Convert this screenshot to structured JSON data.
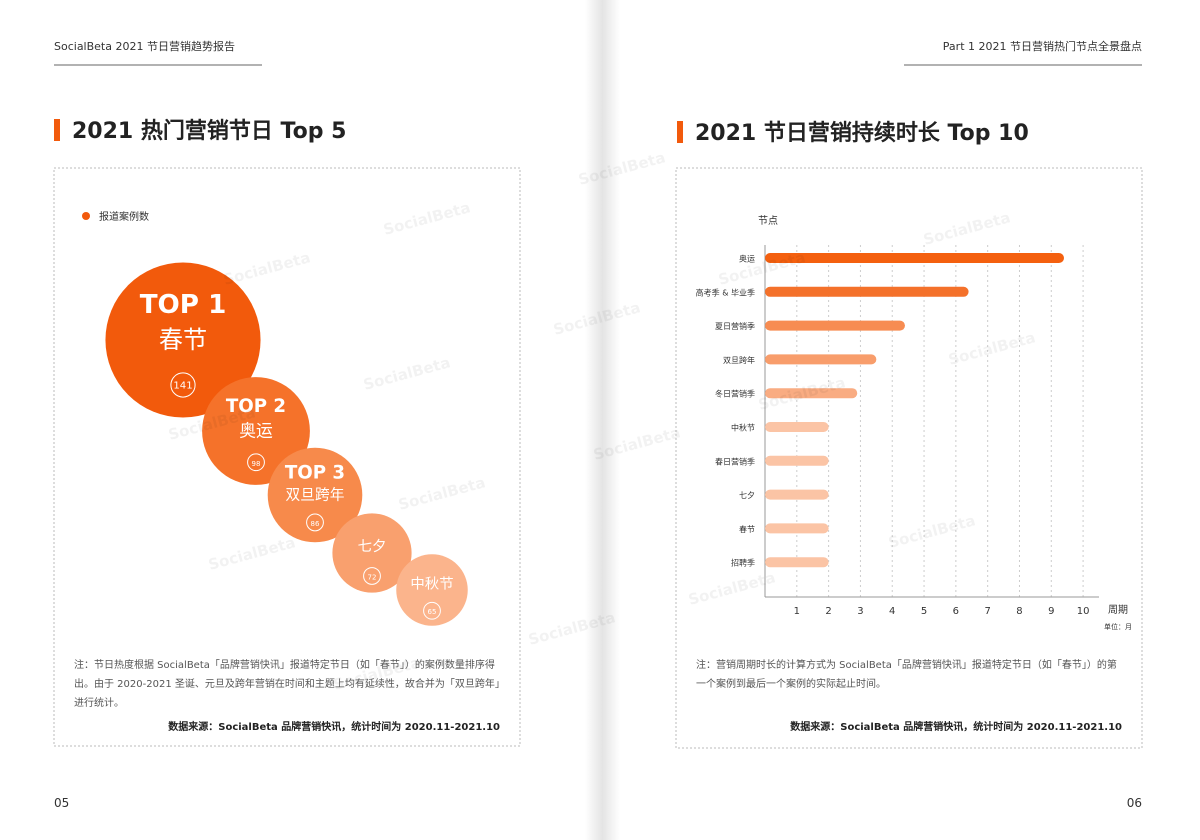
{
  "left": {
    "header": "SocialBeta 2021 节日营销趋势报告",
    "heading": "2021 热门营销节日 Top 5",
    "note": "注：节日热度根据 SocialBeta「品牌营销快讯」报道特定节日（如「春节」）的案例数量排序得出。由于 2020-2021 圣诞、元旦及跨年营销在时间和主题上均有延续性，故合并为「双旦跨年」进行统计。",
    "source": "数据来源：SocialBeta 品牌营销快讯，统计时间为 2020.11-2021.10",
    "page": "05"
  },
  "right": {
    "header": "Part 1  2021 节日营销热门节点全景盘点",
    "heading": "2021 节日营销持续时长 Top 10",
    "note": "注：营销周期时长的计算方式为 SocialBeta「品牌营销快讯」报道特定节日（如「春节」）的第一个案例到最后一个案例的实际起止时间。",
    "source": "数据来源：SocialBeta 品牌营销快讯，统计时间为 2020.11-2021.10",
    "page": "06"
  },
  "watermark": "SocialBeta",
  "chart_data": [
    {
      "type": "bubble",
      "series": [
        {
          "name": "报道案例数",
          "color": "#f25a0c",
          "values": [
            141,
            98,
            86,
            72,
            65
          ]
        }
      ],
      "categories": [
        "春节",
        "奥运",
        "双旦跨年",
        "七夕",
        "中秋节"
      ],
      "rank_labels": [
        "TOP 1",
        "TOP 2",
        "TOP 3",
        null,
        null
      ],
      "colors": [
        "#f25a0c",
        "#f5722a",
        "#f78a4b",
        "#f9a06e",
        "#fbb48c"
      ]
    },
    {
      "type": "barh",
      "y_label": "节点",
      "x_label": "周期",
      "unit": "单位：月",
      "categories": [
        "奥运",
        "高考季 & 毕业季",
        "夏日营销季",
        "双旦跨年",
        "冬日营销季",
        "中秋节",
        "春日营销季",
        "七夕",
        "春节",
        "招聘季"
      ],
      "values": [
        9.4,
        6.4,
        4.4,
        3.5,
        2.9,
        2,
        2,
        2,
        2,
        2
      ],
      "colors": [
        "#f4600f",
        "#f4712a",
        "#f78c52",
        "#f89d6b",
        "#f9ac82",
        "#fbc4a5",
        "#fbc4a5",
        "#fbc4a5",
        "#fbc4a5",
        "#fbc4a5"
      ],
      "xlim": [
        0,
        10.5
      ],
      "xticks": [
        1,
        2,
        3,
        4,
        5,
        6,
        7,
        8,
        9,
        10
      ],
      "grid": true
    }
  ]
}
